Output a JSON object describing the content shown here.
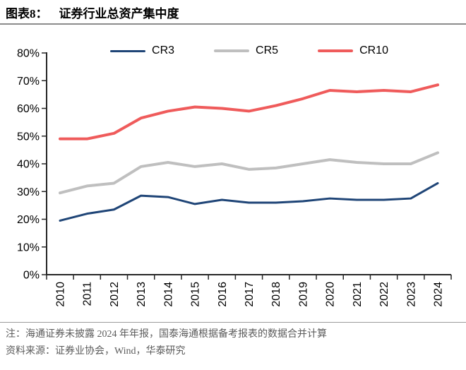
{
  "header": {
    "tag": "图表8：",
    "title": "证券行业总资产集中度"
  },
  "chart_data": {
    "type": "line",
    "x": [
      "2010",
      "2011",
      "2012",
      "2013",
      "2014",
      "2015",
      "2016",
      "2017",
      "2018",
      "2019",
      "2020",
      "2021",
      "2022",
      "2023",
      "2024"
    ],
    "series": [
      {
        "name": "CR3",
        "color": "#1f4577",
        "values": [
          19.5,
          22,
          23.5,
          28.5,
          28,
          25.5,
          27,
          26,
          26,
          26.5,
          27.5,
          27,
          27,
          27.5,
          33
        ]
      },
      {
        "name": "CR5",
        "color": "#bfbfbf",
        "values": [
          29.5,
          32,
          33,
          39,
          40.5,
          39,
          40,
          38,
          38.5,
          40,
          41.5,
          40.5,
          40,
          40,
          44
        ]
      },
      {
        "name": "CR10",
        "color": "#ef5b5b",
        "values": [
          49,
          49,
          51,
          56.5,
          59,
          60.5,
          60,
          59,
          61,
          63.5,
          66.5,
          66,
          66.5,
          66,
          68.5
        ]
      }
    ],
    "title": "证券行业总资产集中度",
    "xlabel": "",
    "ylabel": "",
    "ylim": [
      0,
      80
    ],
    "ytick_step": 10,
    "ytick_format": "percent",
    "grid": false,
    "legend_position": "top",
    "axis_color": "#262626",
    "tick_label_color": "#000000"
  },
  "footnote": {
    "note": "注：海通证券未披露 2024 年年报，国泰海通根据备考报表的数据合并计算",
    "source": "资料来源：证券业协会，Wind，华泰研究"
  }
}
